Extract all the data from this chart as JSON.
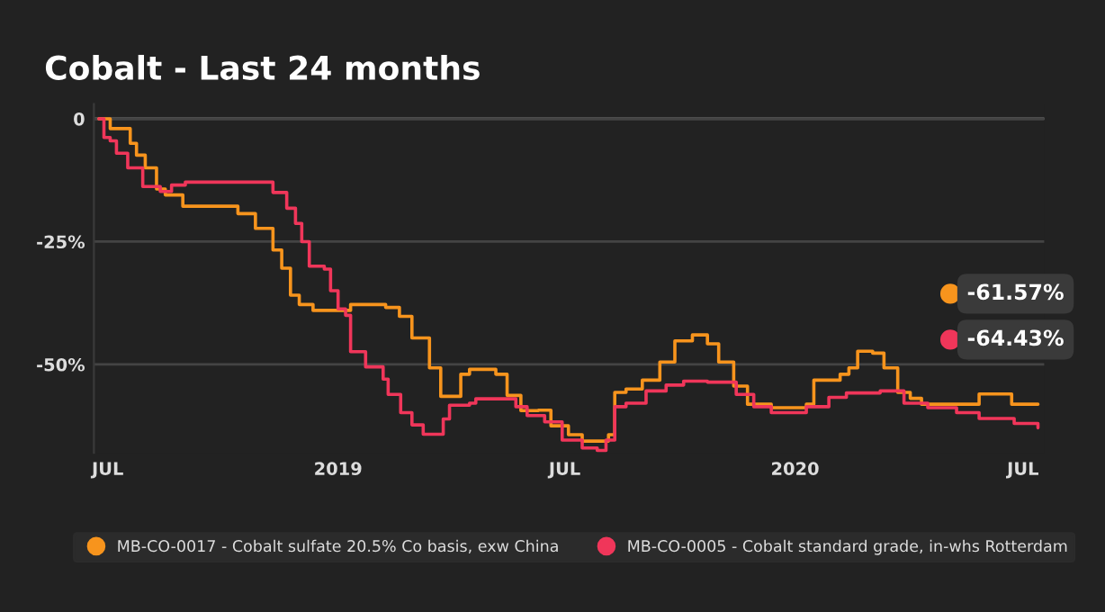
{
  "chart_data": {
    "type": "step",
    "title": "Cobalt - Last 24 months",
    "xlim": [
      "2018-06-20",
      "2020-07-18"
    ],
    "ylim": [
      -68,
      3
    ],
    "xticks": [
      {
        "value": "2018-07-01",
        "label": "JUL"
      },
      {
        "value": "2019-01-01",
        "label": "2019"
      },
      {
        "value": "2019-07-01",
        "label": "JUL"
      },
      {
        "value": "2020-01-01",
        "label": "2020"
      },
      {
        "value": "2020-07-01",
        "label": "JUL"
      }
    ],
    "yticks": [
      0,
      {
        "value": -25,
        "label": "-25%"
      },
      {
        "value": -50,
        "label": "-50%"
      }
    ],
    "grid": "y",
    "legend": "bottom",
    "annotations": [
      "-61.57%",
      "-64.43%"
    ],
    "series": [
      {
        "name": "MB-CO-0017 - Cobalt sulfate 20.5% Co basis, exw China",
        "color": "#f7941d",
        "x": [
          "2018-06-24",
          "2018-07-01",
          "2018-07-03",
          "2018-07-17",
          "2018-07-19",
          "2018-07-24",
          "2018-07-31",
          "2018-08-09",
          "2018-08-16",
          "2018-08-30",
          "2018-10-09",
          "2018-10-13",
          "2018-10-27",
          "2018-11-10",
          "2018-11-17",
          "2018-11-24",
          "2018-12-01",
          "2018-12-12",
          "2019-01-04",
          "2019-01-11",
          "2019-01-23",
          "2019-02-08",
          "2019-02-19",
          "2019-03-01",
          "2019-03-15",
          "2019-03-24",
          "2019-03-31",
          "2019-04-09",
          "2019-04-16",
          "2019-05-07",
          "2019-05-16",
          "2019-05-27",
          "2019-06-10",
          "2019-06-20",
          "2019-07-04",
          "2019-07-15",
          "2019-07-27",
          "2019-08-05",
          "2019-08-10",
          "2019-08-19",
          "2019-09-01",
          "2019-09-15",
          "2019-09-27",
          "2019-10-11",
          "2019-10-23",
          "2019-11-01",
          "2019-11-13",
          "2019-11-24",
          "2019-12-13",
          "2019-12-27",
          "2020-01-10",
          "2020-01-16",
          "2020-02-06",
          "2020-02-13",
          "2020-02-20",
          "2020-03-03",
          "2020-03-12",
          "2020-03-23",
          "2020-04-02",
          "2020-04-11",
          "2020-05-18",
          "2020-05-27",
          "2020-06-17",
          "2020-06-22",
          "2020-07-13"
        ],
        "values": [
          0,
          0,
          -2,
          -2,
          -5,
          -7.4,
          -10,
          -14.3,
          -15.5,
          -17.8,
          -17.8,
          -19.3,
          -22.3,
          -26.7,
          -30.4,
          -35.9,
          -37.8,
          -39,
          -39,
          -37.8,
          -37.8,
          -38.4,
          -40.2,
          -44.6,
          -50.7,
          -56.5,
          -56.5,
          -52,
          -51,
          -52,
          -56.3,
          -59.4,
          -59.3,
          -62.5,
          -64.3,
          -65.6,
          -65.6,
          -64.3,
          -55.7,
          -55,
          -53.2,
          -49.5,
          -45.2,
          -44,
          -45.8,
          -49.5,
          -54.4,
          -58.1,
          -58.8,
          -58.8,
          -58.1,
          -53.2,
          -52,
          -50.7,
          -47.3,
          -47.7,
          -50.7,
          -55.7,
          -56.9,
          -58.1,
          -58.1,
          -56,
          -56,
          -58.1,
          -58.1
        ]
      },
      {
        "name": "MB-CO-0005 - Cobalt standard grade, in-whs Rotterdam",
        "color": "#f0365a",
        "x": [
          "2018-06-24",
          "2018-06-28",
          "2018-07-03",
          "2018-07-08",
          "2018-07-17",
          "2018-07-29",
          "2018-08-12",
          "2018-08-21",
          "2018-09-01",
          "2018-11-01",
          "2018-11-10",
          "2018-11-21",
          "2018-11-28",
          "2018-12-03",
          "2018-12-09",
          "2018-12-21",
          "2018-12-26",
          "2019-01-01",
          "2019-01-07",
          "2019-01-11",
          "2019-01-23",
          "2019-02-06",
          "2019-02-10",
          "2019-02-20",
          "2019-03-01",
          "2019-03-10",
          "2019-03-19",
          "2019-03-26",
          "2019-03-31",
          "2019-04-16",
          "2019-04-21",
          "2019-05-16",
          "2019-05-23",
          "2019-06-01",
          "2019-06-15",
          "2019-06-29",
          "2019-07-15",
          "2019-07-27",
          "2019-08-03",
          "2019-08-10",
          "2019-08-19",
          "2019-09-04",
          "2019-09-20",
          "2019-10-04",
          "2019-10-23",
          "2019-11-15",
          "2019-11-29",
          "2019-12-13",
          "2020-01-02",
          "2020-01-10",
          "2020-01-28",
          "2020-02-11",
          "2020-03-09",
          "2020-03-28",
          "2020-04-16",
          "2020-05-09",
          "2020-05-27",
          "2020-06-24",
          "2020-07-13"
        ],
        "values": [
          0,
          -3.8,
          -4.5,
          -7,
          -10,
          -13.8,
          -14.8,
          -13.5,
          -12.9,
          -12.9,
          -15,
          -18.2,
          -21.3,
          -25,
          -30,
          -30.6,
          -35,
          -38.7,
          -40,
          -47.4,
          -50.5,
          -53,
          -56.1,
          -59.8,
          -62.3,
          -64.2,
          -64.2,
          -61.1,
          -58.3,
          -57.9,
          -57,
          -57,
          -58.6,
          -60.4,
          -61.7,
          -65.4,
          -67,
          -67.5,
          -65.4,
          -58.6,
          -57.9,
          -55.4,
          -54.2,
          -53.4,
          -53.6,
          -56.1,
          -58.6,
          -59.8,
          -59.8,
          -58.6,
          -56.7,
          -55.8,
          -55.4,
          -57.9,
          -58.8,
          -59.8,
          -61,
          -62,
          -62.9
        ]
      }
    ]
  }
}
